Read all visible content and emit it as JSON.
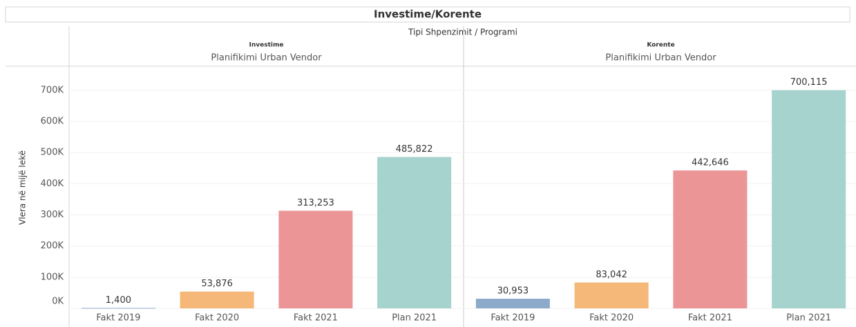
{
  "chart_data": {
    "type": "bar",
    "title": "Investime/Korente",
    "subtitle": "Tipi Shpenzimit / Programi",
    "ylabel": "Vlera në mijë lekë",
    "categories": [
      "Fakt 2019",
      "Fakt 2020",
      "Fakt 2021",
      "Plan 2021"
    ],
    "colors": [
      "#8eaacb",
      "#f5b879",
      "#eb9597",
      "#a7d3ce"
    ],
    "ylim": [
      0,
      777000
    ],
    "yticks": [
      {
        "value": 0,
        "label": "0K"
      },
      {
        "value": 100000,
        "label": "100K"
      },
      {
        "value": 200000,
        "label": "200K"
      },
      {
        "value": 300000,
        "label": "300K"
      },
      {
        "value": 400000,
        "label": "400K"
      },
      {
        "value": 500000,
        "label": "500K"
      },
      {
        "value": 600000,
        "label": "600K"
      },
      {
        "value": 700000,
        "label": "700K"
      }
    ],
    "grid": true,
    "panels": [
      {
        "name": "Investime",
        "program": "Planifikimi Urban Vendor",
        "values": [
          1400,
          53876,
          313253,
          485822
        ],
        "value_labels": [
          "1,400",
          "53,876",
          "313,253",
          "485,822"
        ]
      },
      {
        "name": "Korente",
        "program": "Planifikimi Urban Vendor",
        "values": [
          30953,
          83042,
          442646,
          700115
        ],
        "value_labels": [
          "30,953",
          "83,042",
          "442,646",
          "700,115"
        ]
      }
    ]
  }
}
